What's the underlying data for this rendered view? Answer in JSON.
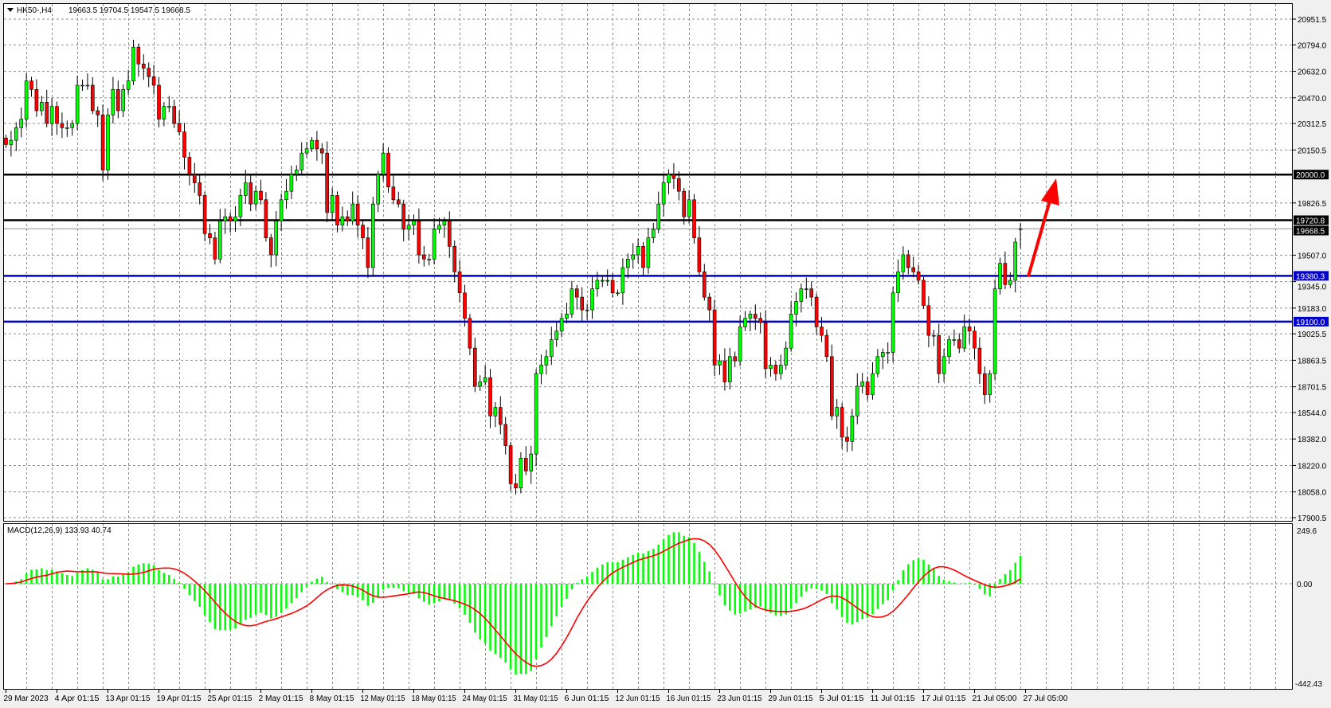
{
  "header": {
    "symbol": "HK50-,H4",
    "ohlc": "19663.5 19704.5 19547.5 19668.5",
    "collapse_icon": "triangle-down-icon"
  },
  "indicator": {
    "label": "MACD(12,26,9) 133.93 40.74",
    "scale_top": "249.6",
    "scale_zero": "0.00",
    "scale_bottom": "-442.43"
  },
  "colors": {
    "bull": "#00ff00",
    "bear": "#ff0000",
    "resistance": "#000000",
    "support": "#0000cc",
    "histogram": "#00ff00",
    "signal": "#ff0000",
    "arrow": "#ff0000",
    "grid": "#8a8f99"
  },
  "price_axis": [
    "20951.5",
    "20794.0",
    "20632.0",
    "20470.0",
    "20312.5",
    "20150.5",
    "19826.5",
    "19507.0",
    "19345.0",
    "19183.0",
    "19025.5",
    "18863.5",
    "18701.5",
    "18544.0",
    "18382.0",
    "18220.0",
    "18058.0",
    "17900.5"
  ],
  "levels": [
    {
      "price": 20000.0,
      "label": "20000.0",
      "kind": "resistance"
    },
    {
      "price": 19720.8,
      "label": "19720.8",
      "kind": "resistance"
    },
    {
      "price": 19668.5,
      "label": "19668.5",
      "kind": "current"
    },
    {
      "price": 19380.3,
      "label": "19380.3",
      "kind": "support"
    },
    {
      "price": 19100.0,
      "label": "19100.0",
      "kind": "support"
    }
  ],
  "time_axis": [
    "29 Mar 2023",
    "4 Apr 01:15",
    "13 Apr 01:15",
    "19 Apr 01:15",
    "25 Apr 01:15",
    "2 May 01:15",
    "8 May 01:15",
    "12 May 01:15",
    "18 May 01:15",
    "24 May 01:15",
    "31 May 01:15",
    "6 Jun 01:15",
    "12 Jun 01:15",
    "16 Jun 01:15",
    "23 Jun 01:15",
    "29 Jun 01:15",
    "5 Jul 01:15",
    "11 Jul 01:15",
    "17 Jul 01:15",
    "21 Jul 05:00",
    "27 Jul 05:00"
  ],
  "chart_data": {
    "type": "candlestick",
    "timeframe": "H4",
    "ylim": [
      17900.5,
      20951.5
    ],
    "grid": true,
    "closes": [
      20184,
      20210,
      20287,
      20339,
      20573,
      20521,
      20391,
      20443,
      20313,
      20417,
      20313,
      20287,
      20287,
      20313,
      20547,
      20547,
      20547,
      20391,
      20365,
      20028,
      20365,
      20521,
      20391,
      20521,
      20573,
      20780,
      20677,
      20651,
      20599,
      20547,
      20339,
      20417,
      20417,
      20313,
      20261,
      20106,
      20002,
      19950,
      19872,
      19639,
      19613,
      19483,
      19716,
      19742,
      19716,
      19742,
      19872,
      19950,
      19820,
      19898,
      19846,
      19613,
      19509,
      19716,
      19846,
      19898,
      20002,
      20028,
      20132,
      20158,
      20210,
      20158,
      20132,
      19768,
      19872,
      19691,
      19742,
      19716,
      19820,
      19691,
      19613,
      19431,
      19820,
      20002,
      20132,
      19924,
      19846,
      19820,
      19665,
      19691,
      19716,
      19509,
      19483,
      19483,
      19665,
      19691,
      19716,
      19561,
      19405,
      19276,
      19120,
      18938,
      18705,
      18731,
      18757,
      18523,
      18575,
      18471,
      18341,
      18108,
      18082,
      18264,
      18186,
      18290,
      18782,
      18834,
      18886,
      18990,
      19042,
      19120,
      19146,
      19301,
      19250,
      19172,
      19172,
      19301,
      19353,
      19353,
      19353,
      19276,
      19276,
      19431,
      19483,
      19509,
      19561,
      19431,
      19613,
      19665,
      19820,
      19950,
      20002,
      19976,
      19898,
      19742,
      19846,
      19613,
      19405,
      19250,
      19172,
      18834,
      18860,
      18731,
      18886,
      18860,
      19068,
      19120,
      19146,
      19120,
      19094,
      18813,
      18834,
      18782,
      18834,
      18938,
      19146,
      19224,
      19301,
      19301,
      19250,
      19068,
      19016,
      18886,
      18523,
      18575,
      18393,
      18367,
      18523,
      18705,
      18731,
      18653,
      18782,
      18886,
      18912,
      18912,
      19276,
      19405,
      19509,
      19431,
      19405,
      19353,
      19198,
      19016,
      19016,
      18782,
      18886,
      18990,
      18990,
      18938,
      19068,
      19042,
      18938,
      18782,
      18653,
      18782,
      19301,
      19457,
      19327,
      19353,
      19587,
      19665
    ],
    "last": {
      "open": 19663.5,
      "high": 19704.5,
      "low": 19547.5,
      "close": 19668.5
    },
    "macd": {
      "fast": 12,
      "slow": 26,
      "signal": 9,
      "value": 133.93,
      "signal_value": 40.74,
      "ylim": [
        -442.43,
        249.6
      ]
    }
  }
}
